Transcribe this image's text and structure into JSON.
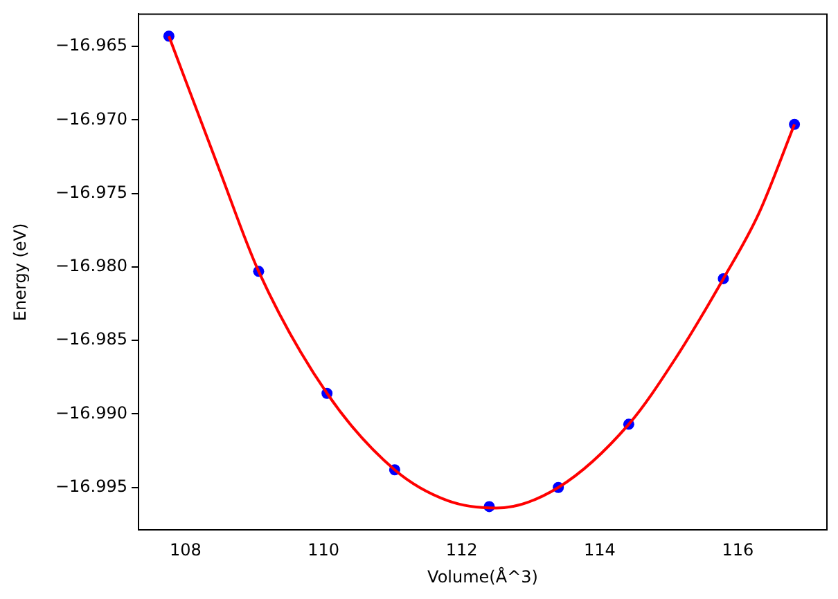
{
  "chart_data": {
    "type": "scatter",
    "xlabel": "Volume(Å^3)",
    "ylabel": "Energy (eV)",
    "xlim": [
      107.32,
      117.29
    ],
    "xticks": [
      108,
      110,
      112,
      114,
      116
    ],
    "ylim": [
      -16.9979,
      -16.9628
    ],
    "yticks": [
      {
        "value": -16.965,
        "label": "−16.965"
      },
      {
        "value": -16.97,
        "label": "−16.970"
      },
      {
        "value": -16.975,
        "label": "−16.975"
      },
      {
        "value": -16.98,
        "label": "−16.980"
      },
      {
        "value": -16.985,
        "label": "−16.985"
      },
      {
        "value": -16.99,
        "label": "−16.990"
      },
      {
        "value": -16.995,
        "label": "−16.995"
      }
    ],
    "grid": false,
    "legend": false,
    "marker": "circle",
    "series": [
      {
        "type": "line",
        "color": "#ff0000",
        "marker": "none",
        "x": [
          107.76,
          108.5,
          109.06,
          110.05,
          111.03,
          111.8,
          112.5,
          113.4,
          114.42,
          115.1,
          115.79,
          116.3,
          116.82
        ],
        "values": [
          -16.9643,
          -16.9735,
          -16.9803,
          -16.9886,
          -16.9938,
          -16.9959,
          -16.9964,
          -16.995,
          -16.9907,
          -16.9862,
          -16.9808,
          -16.9764,
          -16.9703
        ]
      },
      {
        "type": "scatter",
        "color": "#0000ff",
        "x": [
          107.76,
          109.06,
          110.05,
          111.03,
          112.4,
          113.4,
          114.42,
          115.79,
          116.82
        ],
        "values": [
          -16.9643,
          -16.9803,
          -16.9886,
          -16.9938,
          -16.9963,
          -16.995,
          -16.9907,
          -16.9808,
          -16.9703
        ]
      }
    ]
  }
}
